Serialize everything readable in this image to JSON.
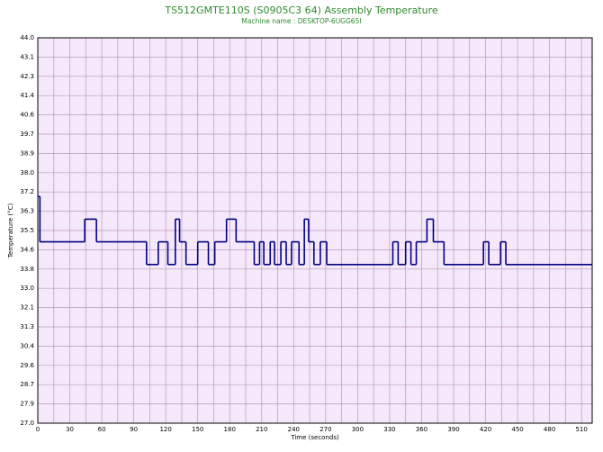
{
  "chart_data": {
    "type": "step",
    "title": "TS512GMTE110S (S0905C3 64) Assembly Temperature",
    "subtitle": "Machine name : DESKTOP-6UGG65I",
    "xlabel": "Time (seconds)",
    "ylabel": "Temperature (°C)",
    "x": [
      0,
      2,
      44,
      55,
      102,
      113,
      122,
      129,
      133,
      139,
      150,
      160,
      166,
      177,
      186,
      203,
      208,
      212,
      218,
      222,
      228,
      233,
      238,
      245,
      250,
      254,
      259,
      265,
      271,
      333,
      338,
      345,
      350,
      355,
      365,
      371,
      381,
      418,
      423,
      434,
      439
    ],
    "values": [
      37,
      35,
      36,
      35,
      34,
      35,
      34,
      36,
      35,
      34,
      35,
      34,
      35,
      36,
      35,
      34,
      35,
      34,
      35,
      34,
      35,
      34,
      35,
      34,
      36,
      35,
      34,
      35,
      34,
      35,
      34,
      35,
      34,
      35,
      36,
      35,
      34,
      35,
      34,
      35,
      34
    ],
    "color": "#000080",
    "xlim": [
      0,
      520
    ],
    "ylim": [
      27,
      44
    ],
    "xticks": [
      0,
      30,
      60,
      90,
      120,
      150,
      180,
      210,
      240,
      270,
      300,
      330,
      360,
      390,
      420,
      450,
      480,
      510
    ],
    "yticks": [
      {
        "value": 27,
        "label": "27.0"
      },
      {
        "value": 27.85,
        "label": "27.9"
      },
      {
        "value": 28.7,
        "label": "28.7"
      },
      {
        "value": 29.55,
        "label": "29.6"
      },
      {
        "value": 30.4,
        "label": "30.4"
      },
      {
        "value": 31.25,
        "label": "31.3"
      },
      {
        "value": 32.1,
        "label": "32.1"
      },
      {
        "value": 32.95,
        "label": "33.0"
      },
      {
        "value": 33.8,
        "label": "33.8"
      },
      {
        "value": 34.65,
        "label": "34.6"
      },
      {
        "value": 35.5,
        "label": "35.5"
      },
      {
        "value": 36.35,
        "label": "36.3"
      },
      {
        "value": 37.2,
        "label": "37.2"
      },
      {
        "value": 38.05,
        "label": "38.0"
      },
      {
        "value": 38.9,
        "label": "38.9"
      },
      {
        "value": 39.75,
        "label": "39.7"
      },
      {
        "value": 40.6,
        "label": "40.6"
      },
      {
        "value": 41.45,
        "label": "41.4"
      },
      {
        "value": 42.3,
        "label": "42.3"
      },
      {
        "value": 43.15,
        "label": "43.1"
      },
      {
        "value": 44,
        "label": "44.0"
      }
    ],
    "grid": true
  }
}
